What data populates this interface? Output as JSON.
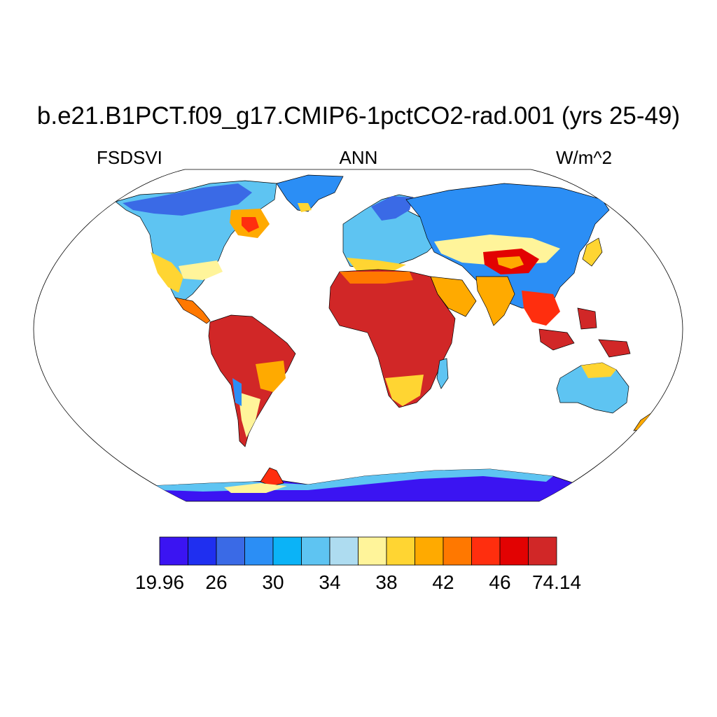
{
  "title": "b.e21.B1PCT.f09_g17.CMIP6-1pctCO2-rad.001 (yrs 25-49)",
  "variable": "FSDSVI",
  "season": "ANN",
  "units": "W/m^2",
  "projection": "Robinson",
  "colorbar": {
    "labels": [
      "19.96",
      "26",
      "30",
      "34",
      "38",
      "42",
      "46",
      "74.14"
    ],
    "label_bin_index": [
      0,
      2,
      4,
      6,
      8,
      10,
      12,
      14
    ],
    "colors": [
      "#3B14F2",
      "#1F2FF0",
      "#3A6AE6",
      "#2B8EF5",
      "#0BB3F7",
      "#5EC4F2",
      "#AEDCF0",
      "#FFF49A",
      "#FFD532",
      "#FFAA00",
      "#FF7800",
      "#FF2E0E",
      "#E20202",
      "#D12727"
    ]
  },
  "map_data": {
    "regions": [
      {
        "name": "Sahara / North Africa",
        "level": "74.14",
        "color": "#D12727"
      },
      {
        "name": "Amazon basin",
        "level": "74.14",
        "color": "#D12727"
      },
      {
        "name": "Maritime Continent",
        "level": "74.14",
        "color": "#D12727"
      },
      {
        "name": "Arabian Peninsula",
        "level": "42-46",
        "color": "#FFAA00"
      },
      {
        "name": "Tibetan Plateau",
        "level": "46-74.14",
        "color": "#E20202"
      },
      {
        "name": "Australia interior",
        "level": "34-38",
        "color": "#5EC4F2"
      },
      {
        "name": "Siberia / Northern Eurasia",
        "level": "30-34",
        "color": "#2B8EF5"
      },
      {
        "name": "Northern Canada",
        "level": "26-30",
        "color": "#3A6AE6"
      },
      {
        "name": "East Antarctica",
        "level": "19.96-26",
        "color": "#3B14F2"
      }
    ]
  }
}
